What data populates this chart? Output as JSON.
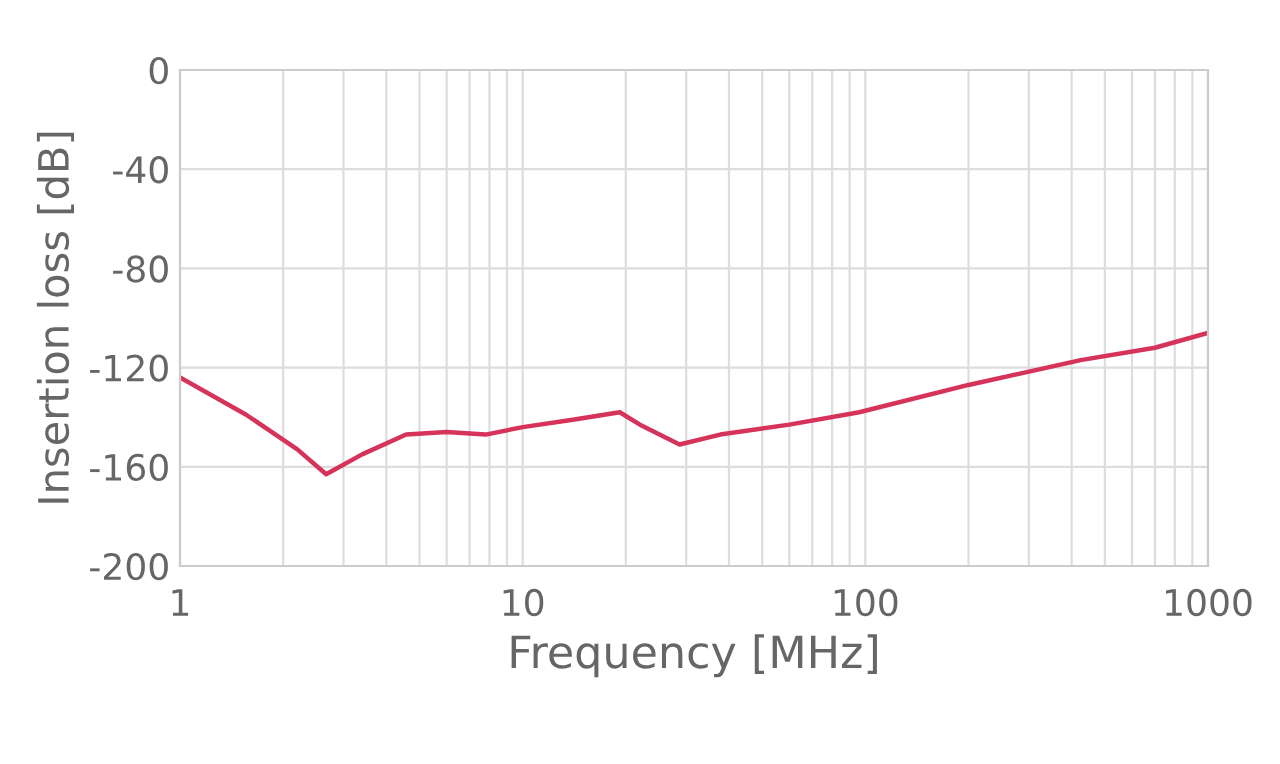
{
  "chart_data": {
    "type": "line",
    "xlabel": "Frequency [MHz]",
    "ylabel": "Insertion loss [dB]",
    "log": "x",
    "grid": true,
    "series": [
      {
        "color": "#d6335a",
        "x": [
          1,
          1.56,
          2.2,
          2.67,
          3.4,
          4.57,
          6,
          7.8,
          10,
          14,
          19.2,
          22,
          28.7,
          37.7,
          60,
          96,
          200,
          425,
          700,
          1000
        ],
        "values": [
          -124,
          -139,
          -153,
          -163,
          -155,
          -147,
          -146,
          -147,
          -144,
          -141,
          -138,
          -143,
          -151,
          -147,
          -143,
          -138,
          -127,
          -117,
          -112,
          -106
        ]
      }
    ],
    "xlim": [
      1,
      1000
    ],
    "xticks": [
      1,
      10,
      100,
      1000
    ],
    "ylim": [
      -200,
      0
    ],
    "yticks": [
      -200,
      -160,
      -120,
      -80,
      -40,
      0
    ]
  }
}
